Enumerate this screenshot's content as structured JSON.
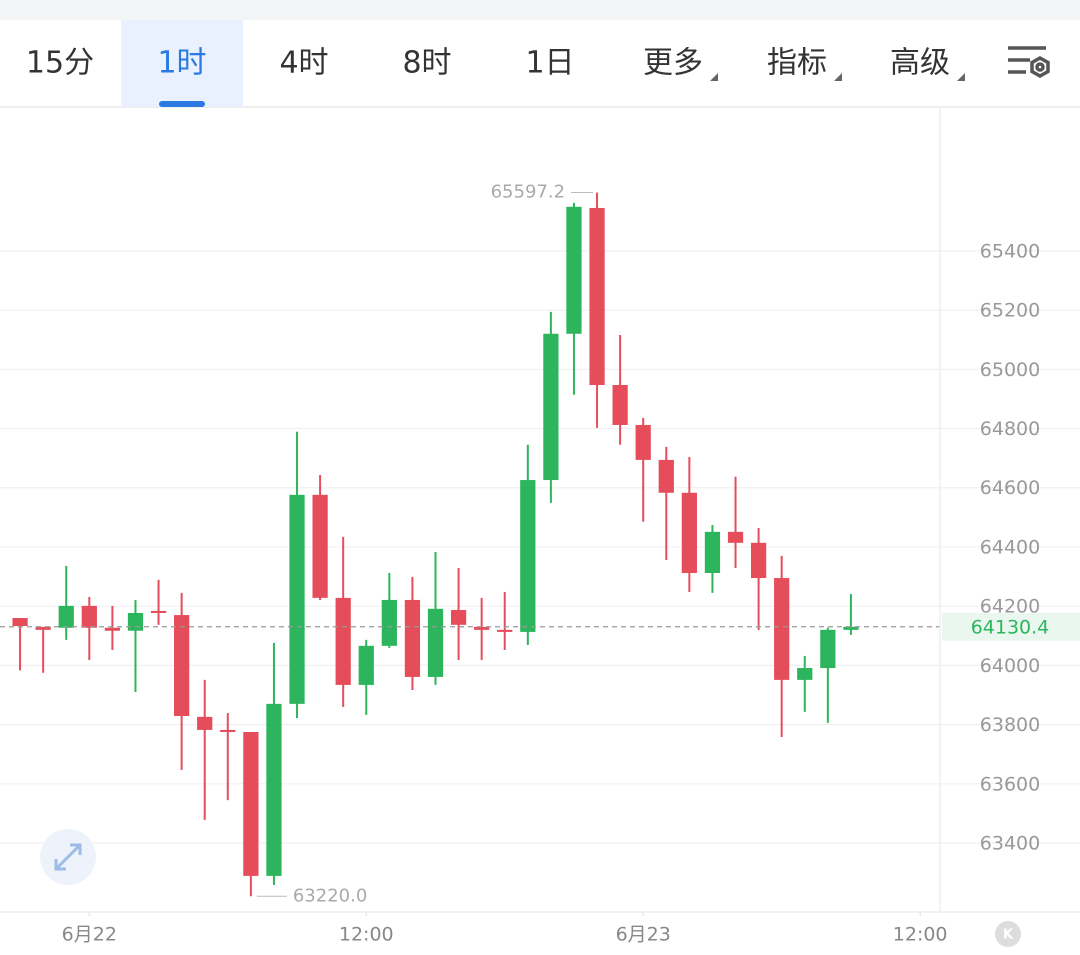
{
  "tabs": [
    "15分",
    "1时",
    "4时",
    "8时",
    "1日",
    "更多",
    "指标",
    "高级"
  ],
  "active_tab": 1,
  "chart_data": {
    "type": "candlestick",
    "x": [
      0,
      1,
      2,
      3,
      4,
      5,
      6,
      7,
      8,
      9,
      10,
      11,
      12,
      13,
      14,
      15,
      16,
      17,
      18,
      19,
      20,
      21,
      22,
      23,
      24,
      25,
      26,
      27,
      28,
      29,
      30,
      31,
      32,
      33,
      34,
      35,
      36
    ],
    "open": [
      64160,
      64130,
      64127,
      64201,
      64127,
      64117,
      64184,
      64170,
      63826,
      63782,
      63775,
      63289,
      63870,
      64576,
      64228,
      63934,
      64066,
      64221,
      63961,
      64187,
      64130,
      64120,
      64113,
      64626,
      65120,
      65545,
      64947,
      64812,
      64694,
      64583,
      64312,
      64451,
      64414,
      64295,
      63951,
      63991,
      64120
    ],
    "high": [
      64160,
      64130,
      64336,
      64231,
      64201,
      64221,
      64289,
      64245,
      63951,
      63839,
      63775,
      64076,
      64789,
      64643,
      64434,
      64086,
      64312,
      64299,
      64383,
      64329,
      64228,
      64248,
      64745,
      65194,
      65562,
      65597.2,
      65116,
      64836,
      64738,
      64704,
      64474,
      64637,
      64464,
      64370,
      64032,
      64127,
      64241
    ],
    "low": [
      63983,
      63975,
      64086,
      64018,
      64052,
      63910,
      64137,
      63647,
      63478,
      63545,
      63220,
      63258,
      63822,
      64221,
      63860,
      63833,
      64059,
      63917,
      63934,
      64018,
      64018,
      64052,
      64069,
      64549,
      64914,
      64802,
      64745,
      64485,
      64356,
      64248,
      64245,
      64329,
      64120,
      63758,
      63843,
      63806,
      64103
    ],
    "close": [
      64133,
      64120,
      64201,
      64127,
      64117,
      64177,
      64177,
      63829,
      63782,
      63775,
      63289,
      63870,
      64576,
      64228,
      63934,
      64066,
      64221,
      63961,
      64191,
      64137,
      64120,
      64113,
      64626,
      65120,
      65549,
      64947,
      64812,
      64694,
      64583,
      64312,
      64451,
      64414,
      64295,
      63951,
      63991,
      64120,
      64130.4
    ],
    "up_color": "#2db55d",
    "down_color": "#e54d5b",
    "xlim": [
      -0.87,
      39.86
    ],
    "xticks": [
      {
        "value": 3,
        "label": "6月22"
      },
      {
        "value": 15,
        "label": "12:00"
      },
      {
        "value": 27,
        "label": "6月23"
      },
      {
        "value": 39,
        "label": "12:00"
      }
    ],
    "ylim": [
      63167,
      65886
    ],
    "yticks": [
      63400,
      63600,
      63800,
      64000,
      64200,
      64400,
      64600,
      64800,
      65000,
      65200,
      65400
    ],
    "grid": true,
    "last_price": 64130.4,
    "max_label": "65597.2",
    "min_label": "63220.0"
  }
}
